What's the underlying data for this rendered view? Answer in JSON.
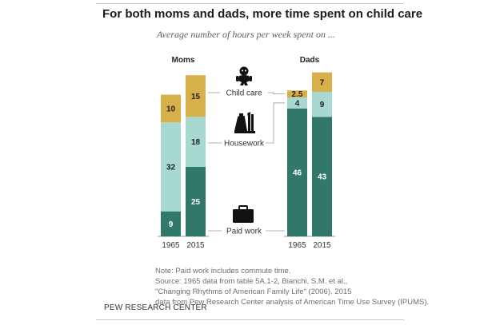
{
  "header": {
    "title": "For both moms and dads, more time  spent on child care",
    "subtitle": "Average number of hours per week spent on ..."
  },
  "colors": {
    "child_care": "#d8b04a",
    "housework": "#a7d9d0",
    "paid_work": "#31786a",
    "axis": "#9a9a9a",
    "connector": "#9a9a9a"
  },
  "icons": {
    "child_care": "baby-icon",
    "housework": "cleaning-supplies-icon",
    "paid_work": "briefcase-icon"
  },
  "chart_data": {
    "type": "bar",
    "stacked": true,
    "groups": [
      "Moms",
      "Dads"
    ],
    "years": [
      "1965",
      "2015"
    ],
    "series": [
      {
        "key": "paid_work",
        "name": "Paid work",
        "moms": [
          9,
          25
        ],
        "dads": [
          46,
          43
        ],
        "labels": {
          "moms": [
            "9",
            "25"
          ],
          "dads": [
            "46",
            "43"
          ]
        }
      },
      {
        "key": "housework",
        "name": "Housework",
        "moms": [
          32,
          18
        ],
        "dads": [
          4,
          9
        ],
        "labels": {
          "moms": [
            "32",
            "18"
          ],
          "dads": [
            "4",
            "9"
          ]
        }
      },
      {
        "key": "child_care",
        "name": "Child care",
        "moms": [
          10,
          15
        ],
        "dads": [
          2.5,
          7
        ],
        "labels": {
          "moms": [
            "10",
            "15"
          ],
          "dads": [
            "2.5",
            "7"
          ]
        }
      }
    ],
    "unit": "hours per week",
    "ylim": [
      0,
      60
    ]
  },
  "notes": {
    "line1": "Note: Paid work includes commute time.",
    "line2": "Source: 1965 data from table 5A.1-2, Bianchi, S.M. et al.,",
    "line3": "\"Changing Rhythms of American Family Life\" (2006). 2015",
    "line4": "data from Pew Research Center analysis of American Time  Use Survey (IPUMS)."
  },
  "brand": "PEW RESEARCH CENTER"
}
